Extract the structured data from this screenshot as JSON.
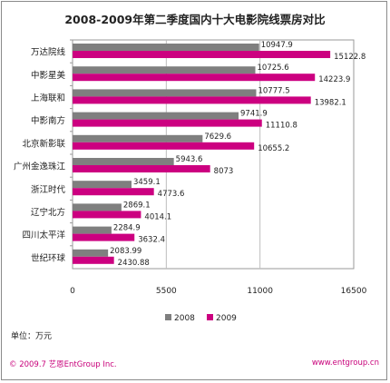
{
  "chart_data": {
    "type": "bar",
    "orientation": "horizontal",
    "title": "2008-2009年第二季度国内十大电影院线票房对比",
    "categories": [
      "万达院线",
      "中影星美",
      "上海联和",
      "中影南方",
      "北京新影联",
      "广州金逸珠江",
      "浙江时代",
      "辽宁北方",
      "四川太平洋",
      "世纪环球"
    ],
    "series": [
      {
        "name": "2008",
        "color": "#7f7f7f",
        "values": [
          10947.9,
          10725.6,
          10777.5,
          9741.9,
          7629.6,
          5943.6,
          3459.1,
          2869.1,
          2284.9,
          2083.99
        ],
        "labels": [
          "10947.9",
          "10725.6",
          "10777.5",
          "9741.9",
          "7629.6",
          "5943.6",
          "3459.1",
          "2869.1",
          "2284.9",
          "2083.99"
        ]
      },
      {
        "name": "2009",
        "color": "#cc0080",
        "values": [
          15122.8,
          14223.9,
          13982.1,
          11110.8,
          10655.2,
          8073,
          4773.6,
          4014.1,
          3632.4,
          2430.88
        ],
        "labels": [
          "15122.8",
          "14223.9",
          "13982.1",
          "11110.8",
          "10655.2",
          "8073",
          "4773.6",
          "4014.1",
          "3632.4",
          "2430.88"
        ]
      }
    ],
    "xlim": [
      0,
      16500
    ],
    "xticks": [
      "0",
      "5500",
      "11000",
      "16500"
    ],
    "legend_position": "bottom",
    "grid": true,
    "unit_note": "单位：万元"
  },
  "footer": {
    "left": "© 2009.7 艺恩EntGroup Inc.",
    "right": "www.entgroup.cn"
  }
}
